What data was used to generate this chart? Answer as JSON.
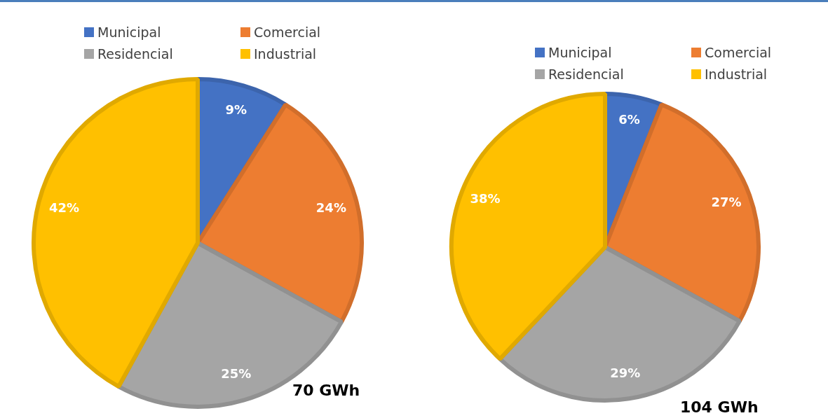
{
  "chart_data": [
    {
      "type": "pie",
      "categories": [
        "Municipal",
        "Comercial",
        "Residencial",
        "Industrial"
      ],
      "values": [
        9,
        24,
        25,
        42
      ],
      "value_labels": [
        "9%",
        "24%",
        "25%",
        "42%"
      ],
      "colors": [
        "#4472c4",
        "#ed7d31",
        "#a5a5a5",
        "#ffc000"
      ],
      "legend": "top",
      "annotations": [
        "70 GWh"
      ]
    },
    {
      "type": "pie",
      "categories": [
        "Municipal",
        "Comercial",
        "Residencial",
        "Industrial"
      ],
      "values": [
        6,
        27,
        29,
        38
      ],
      "value_labels": [
        "6%",
        "27%",
        "29%",
        "38%"
      ],
      "colors": [
        "#4472c4",
        "#ed7d31",
        "#a5a5a5",
        "#ffc000"
      ],
      "legend": "top",
      "annotations": [
        "104 GWh"
      ]
    }
  ]
}
